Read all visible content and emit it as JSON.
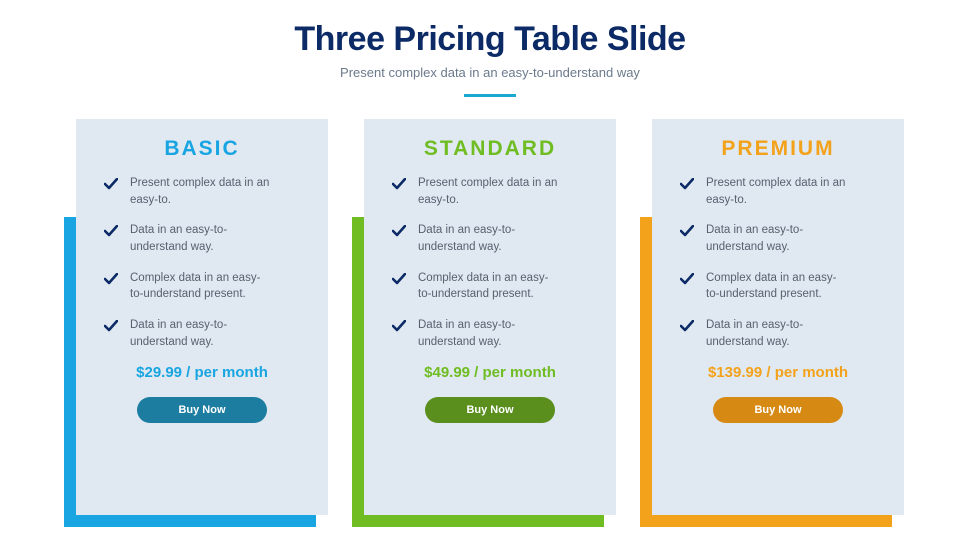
{
  "header": {
    "title": "Three Pricing Table Slide",
    "title_color": "#0b2a66",
    "subtitle": "Present complex data in an easy-to-understand way",
    "subtitle_color": "#6b7a8c",
    "underline_color": "#1aa7d0"
  },
  "card_bg": "#e0e9f1",
  "check_color": "#0b2a66",
  "feature_text_color": "#586070",
  "plans": [
    {
      "id": "basic",
      "name": "BASIC",
      "accent": "#19a5e1",
      "shadow_color": "#19a5e1",
      "button_color": "#1c7da1",
      "price": "$29.99 / per month",
      "button_label": "Buy Now",
      "features": [
        "Present complex data in an easy-to.",
        "Data in an easy-to-understand way.",
        "Complex data in an easy-to-understand present.",
        "Data in an easy-to-understand way."
      ]
    },
    {
      "id": "standard",
      "name": "STANDARD",
      "accent": "#6fbd23",
      "shadow_color": "#6fbd23",
      "button_color": "#5a8f1e",
      "price": "$49.99 / per month",
      "button_label": "Buy Now",
      "features": [
        "Present complex data in an easy-to.",
        "Data in an easy-to-understand way.",
        "Complex data in an easy-to-understand present.",
        "Data in an easy-to-understand way."
      ]
    },
    {
      "id": "premium",
      "name": "PREMIUM",
      "accent": "#f3a21c",
      "shadow_color": "#f3a21c",
      "button_color": "#d68a13",
      "price": "$139.99 / per month",
      "button_label": "Buy Now",
      "features": [
        "Present complex data in an easy-to.",
        "Data in an easy-to-understand way.",
        "Complex data in an easy-to-understand present.",
        "Data in an easy-to-understand way."
      ]
    }
  ]
}
